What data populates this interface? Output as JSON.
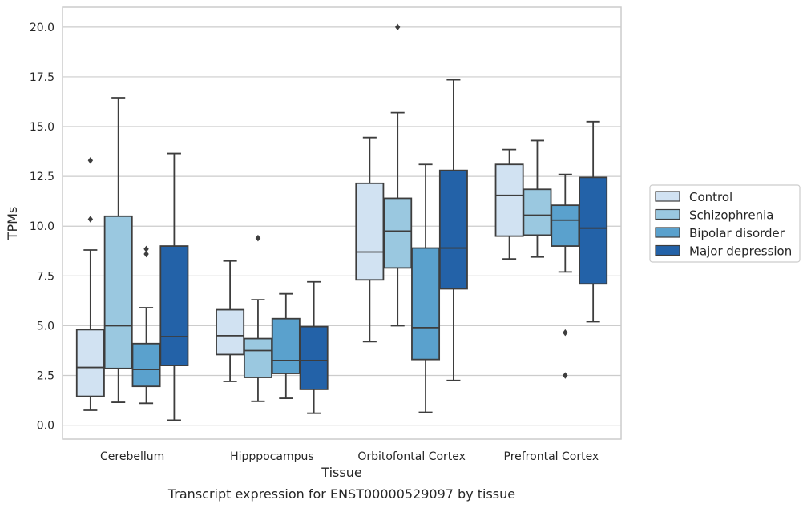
{
  "chart_data": {
    "type": "box",
    "title": "",
    "caption": "Transcript expression for ENST00000529097 by tissue",
    "xlabel": "Tissue",
    "ylabel": "TPMs",
    "ylim": [
      -0.7,
      21.0
    ],
    "yticks": [
      0.0,
      2.5,
      5.0,
      7.5,
      10.0,
      12.5,
      15.0,
      17.5,
      20.0
    ],
    "ytick_labels": [
      "0.0",
      "2.5",
      "5.0",
      "7.5",
      "10.0",
      "12.5",
      "15.0",
      "17.5",
      "20.0"
    ],
    "grid": "horizontal",
    "legend_position": "outside-right",
    "categories": [
      "Cerebellum",
      "Hipppocampus",
      "Orbitofontal Cortex",
      "Prefrontal Cortex"
    ],
    "series": [
      {
        "name": "Control",
        "color": "#d1e2f2",
        "boxes": [
          {
            "whisker_low": 0.75,
            "q1": 1.45,
            "median": 2.9,
            "q3": 4.8,
            "whisker_high": 8.8,
            "outliers": [
              10.35,
              13.3
            ]
          },
          {
            "whisker_low": 2.2,
            "q1": 3.55,
            "median": 4.5,
            "q3": 5.8,
            "whisker_high": 8.25,
            "outliers": []
          },
          {
            "whisker_low": 4.2,
            "q1": 7.3,
            "median": 8.7,
            "q3": 12.15,
            "whisker_high": 14.45,
            "outliers": []
          },
          {
            "whisker_low": 8.35,
            "q1": 9.5,
            "median": 11.55,
            "q3": 13.1,
            "whisker_high": 13.85,
            "outliers": []
          }
        ]
      },
      {
        "name": "Schizophrenia",
        "color": "#9ac8e0",
        "boxes": [
          {
            "whisker_low": 1.15,
            "q1": 2.85,
            "median": 5.0,
            "q3": 10.5,
            "whisker_high": 16.45,
            "outliers": []
          },
          {
            "whisker_low": 1.2,
            "q1": 2.4,
            "median": 3.75,
            "q3": 4.35,
            "whisker_high": 6.3,
            "outliers": [
              9.4
            ]
          },
          {
            "whisker_low": 5.0,
            "q1": 7.9,
            "median": 9.75,
            "q3": 11.4,
            "whisker_high": 15.7,
            "outliers": [
              20.0
            ]
          },
          {
            "whisker_low": 8.45,
            "q1": 9.55,
            "median": 10.55,
            "q3": 11.85,
            "whisker_high": 14.3,
            "outliers": []
          }
        ]
      },
      {
        "name": "Bipolar disorder",
        "color": "#5aa1cd",
        "boxes": [
          {
            "whisker_low": 1.1,
            "q1": 1.95,
            "median": 2.8,
            "q3": 4.1,
            "whisker_high": 5.9,
            "outliers": [
              8.6,
              8.85
            ]
          },
          {
            "whisker_low": 1.35,
            "q1": 2.6,
            "median": 3.25,
            "q3": 5.35,
            "whisker_high": 6.6,
            "outliers": []
          },
          {
            "whisker_low": 0.65,
            "q1": 3.3,
            "median": 4.9,
            "q3": 8.9,
            "whisker_high": 13.1,
            "outliers": []
          },
          {
            "whisker_low": 7.7,
            "q1": 9.0,
            "median": 10.3,
            "q3": 11.05,
            "whisker_high": 12.6,
            "outliers": [
              2.5,
              4.65
            ]
          }
        ]
      },
      {
        "name": "Major depression",
        "color": "#2362a8",
        "boxes": [
          {
            "whisker_low": 0.25,
            "q1": 3.0,
            "median": 4.45,
            "q3": 9.0,
            "whisker_high": 13.65,
            "outliers": []
          },
          {
            "whisker_low": 0.6,
            "q1": 1.8,
            "median": 3.25,
            "q3": 4.95,
            "whisker_high": 7.2,
            "outliers": []
          },
          {
            "whisker_low": 2.25,
            "q1": 6.85,
            "median": 8.9,
            "q3": 12.8,
            "whisker_high": 17.35,
            "outliers": []
          },
          {
            "whisker_low": 5.2,
            "q1": 7.1,
            "median": 9.9,
            "q3": 12.45,
            "whisker_high": 15.25,
            "outliers": []
          }
        ]
      }
    ]
  }
}
